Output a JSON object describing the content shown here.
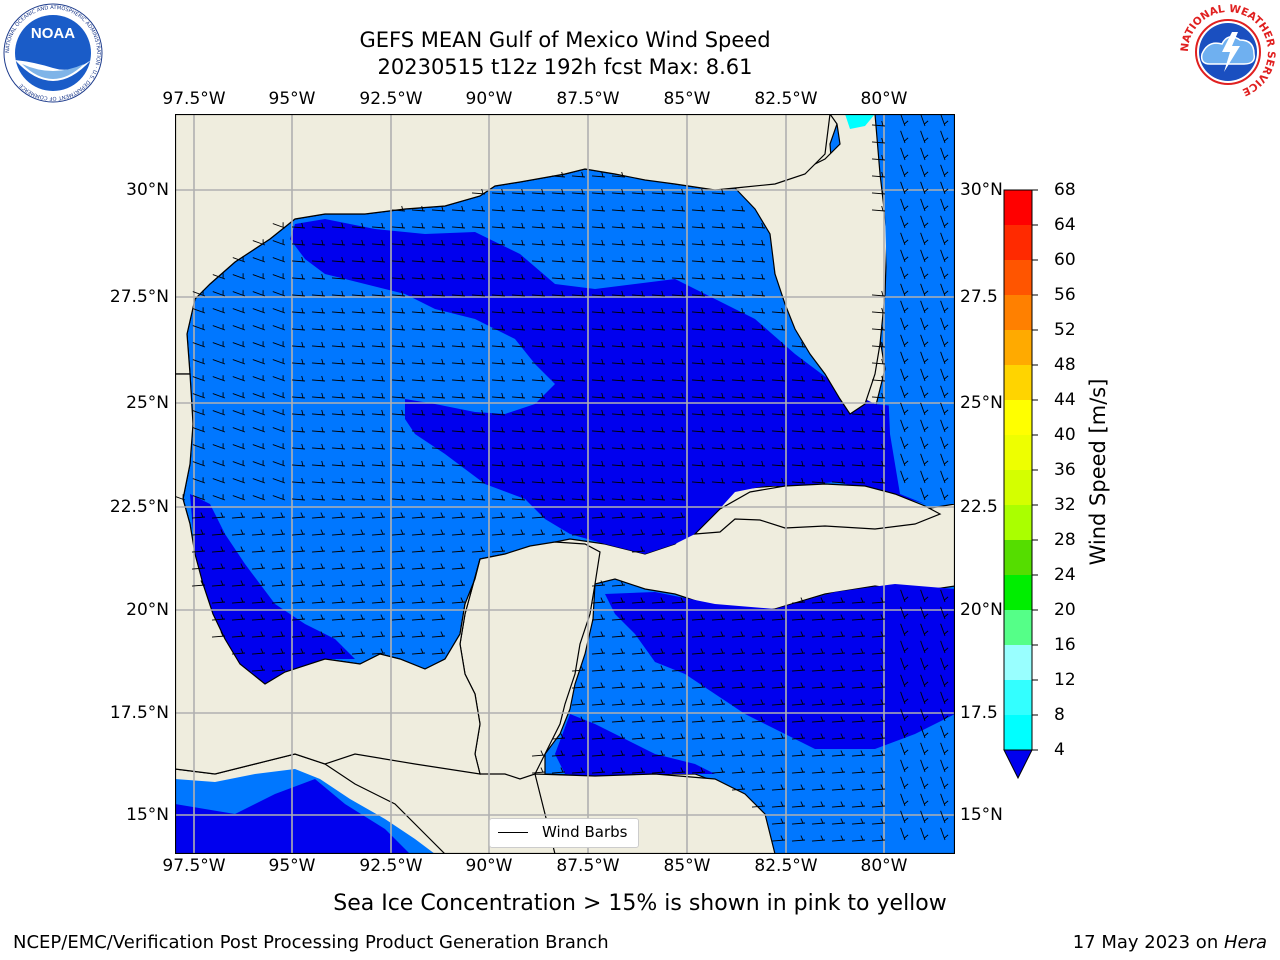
{
  "title": {
    "line1": "GEFS MEAN Gulf of Mexico Wind Speed",
    "line2": "20230515 t12z 192h fcst   Max: 8.61"
  },
  "axes": {
    "lon_ticks": [
      "97.5°W",
      "95°W",
      "92.5°W",
      "90°W",
      "87.5°W",
      "85°W",
      "82.5°W",
      "80°W"
    ],
    "lat_ticks": [
      "30°N",
      "27.5°N",
      "25°N",
      "22.5°N",
      "20°N",
      "17.5°N",
      "15°N"
    ],
    "lat_ticks_right": [
      "30°N",
      "27.5",
      "25°N",
      "22.5",
      "20°N",
      "17.5",
      "15°N"
    ]
  },
  "colorbar": {
    "label": "Wind Speed [m/s]",
    "ticks": [
      "68",
      "64",
      "60",
      "56",
      "52",
      "48",
      "44",
      "40",
      "36",
      "32",
      "28",
      "24",
      "20",
      "16",
      "12",
      "8",
      "4"
    ],
    "colors": [
      "#ff0000",
      "#ff2a00",
      "#ff5500",
      "#ff8000",
      "#ffaa00",
      "#ffd400",
      "#ffff00",
      "#eeff00",
      "#d4ff00",
      "#aaff00",
      "#55dd00",
      "#00ee00",
      "#55ff88",
      "#99ffff",
      "#33ffff",
      "#00ffff",
      "#0077ff"
    ],
    "extend_color": "#0000ee"
  },
  "legend": {
    "label": "Wind Barbs"
  },
  "note": "Sea Ice Concentration > 15% is shown in pink to yellow",
  "footer": {
    "left": "NCEP/EMC/Verification Post Processing Product Generation Branch",
    "right_prefix": "17 May 2023 on ",
    "right_italic": "Hera"
  },
  "logos": {
    "noaa_text": "NOAA",
    "noaa_ring": "NATIONAL OCEANIC AND ATMOSPHERIC ADMINISTRATION · U.S. DEPARTMENT OF COMMERCE",
    "nws_ring": "NATIONAL WEATHER SERVICE"
  },
  "map_colors": {
    "land": "#efedde",
    "water_4_8": "#0077ff",
    "water_lt_4": "#0000ee",
    "water_8_12": "#00ffff"
  }
}
